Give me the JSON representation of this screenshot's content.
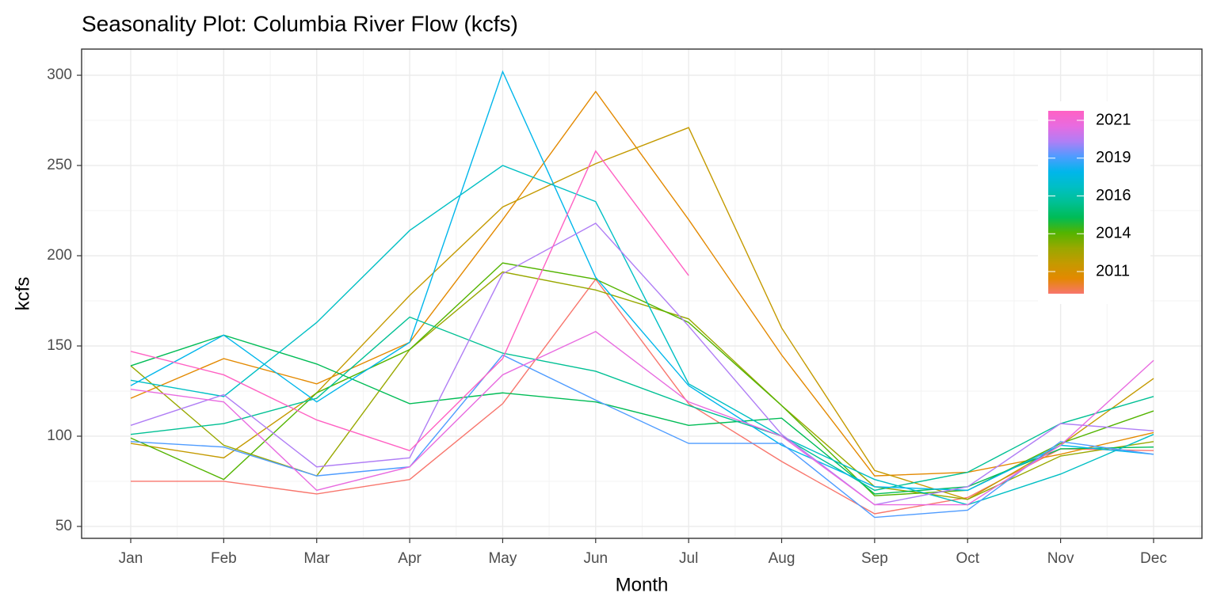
{
  "chart_data": {
    "type": "line",
    "title": "Seasonality Plot: Columbia River Flow (kcfs)",
    "x_label": "Month",
    "y_label": "kcfs",
    "categories": [
      "Jan",
      "Feb",
      "Mar",
      "Apr",
      "May",
      "Jun",
      "Jul",
      "Aug",
      "Sep",
      "Oct",
      "Nov",
      "Dec"
    ],
    "ylim": [
      43.4,
      314.5
    ],
    "yticks": [
      50,
      100,
      150,
      200,
      250,
      300
    ],
    "grid": true,
    "legend_position": "top-right",
    "colorbar_ticks": [
      2021,
      2019,
      2016,
      2014,
      2011
    ],
    "series": [
      {
        "color": "#F8766D",
        "values": [
          75,
          75,
          68,
          76,
          118,
          187,
          118,
          86,
          57,
          66,
          93,
          92
        ]
      },
      {
        "color": "#E38900",
        "values": [
          121,
          143,
          129,
          152,
          220,
          291,
          220,
          145,
          78,
          80,
          90,
          102
        ]
      },
      {
        "color": "#C49A00",
        "values": [
          96,
          88,
          124,
          178,
          227,
          251,
          271,
          160,
          81,
          65,
          95,
          132
        ]
      },
      {
        "color": "#99A800",
        "values": [
          139,
          95,
          78,
          148,
          191,
          181,
          165,
          117,
          72,
          65,
          89,
          97
        ]
      },
      {
        "color": "#53B400",
        "values": [
          99,
          76,
          124,
          148,
          196,
          187,
          163,
          117,
          67,
          70,
          96,
          114
        ]
      },
      {
        "color": "#00BC56",
        "values": [
          139,
          156,
          140,
          118,
          124,
          119,
          106,
          110,
          68,
          72,
          93,
          94
        ]
      },
      {
        "color": "#00C094",
        "values": [
          101,
          107,
          121,
          166,
          146,
          136,
          117,
          100,
          70,
          80,
          107,
          122
        ]
      },
      {
        "color": "#00BFC4",
        "values": [
          131,
          122,
          163,
          214,
          250,
          230,
          129,
          100,
          76,
          62,
          79,
          101
        ]
      },
      {
        "color": "#00B6EB",
        "values": [
          128,
          156,
          119,
          152,
          302,
          188,
          128,
          95,
          72,
          70,
          95,
          90
        ]
      },
      {
        "color": "#4F9CFF",
        "values": [
          97,
          94,
          78,
          83,
          145,
          120,
          96,
          96,
          55,
          59,
          97,
          90
        ]
      },
      {
        "color": "#B07EF5",
        "values": [
          106,
          123,
          83,
          88,
          190,
          218,
          161,
          101,
          62,
          72,
          107,
          103
        ]
      },
      {
        "color": "#E86BE0",
        "values": [
          126,
          119,
          70,
          83,
          134,
          158,
          119,
          100,
          62,
          62,
          95,
          142
        ]
      },
      {
        "color": "#FF61C3",
        "values": [
          147,
          134,
          109,
          92,
          143,
          258,
          189,
          null,
          null,
          null,
          null,
          null
        ]
      }
    ]
  }
}
